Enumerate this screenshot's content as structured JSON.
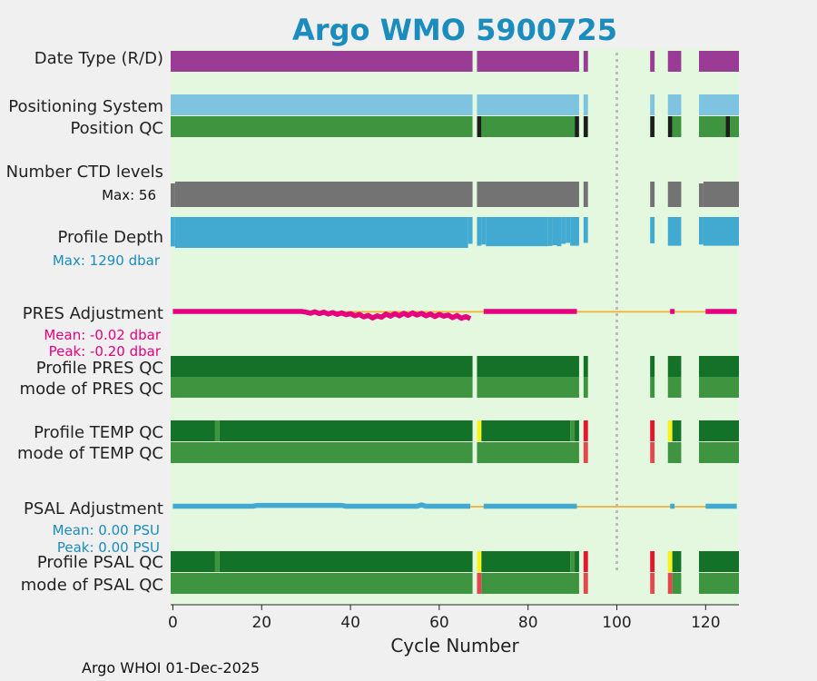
{
  "chart_data": {
    "type": "bar",
    "title": "Argo WMO 5900725",
    "xlabel": "Cycle Number",
    "xlim": [
      -0.5,
      127.5
    ],
    "xticks": [
      0,
      20,
      40,
      60,
      80,
      100,
      120
    ],
    "grid": false,
    "footer": "Argo WHOI 01-Dec-2025",
    "missing_cycle_marker": 100,
    "row_labels": {
      "date_type": "Date Type (R/D)",
      "positioning_system": "Positioning System",
      "position_qc": "Position QC",
      "ctd_levels": "Number CTD levels",
      "ctd_max": "Max: 56",
      "profile_depth": "Profile Depth",
      "depth_max": "Max: 1290 dbar",
      "pres_adjustment": "PRES Adjustment",
      "pres_mean": "Mean: -0.02 dbar",
      "pres_peak": "Peak: -0.20 dbar",
      "profile_pres_qc": "Profile PRES QC",
      "mode_pres_qc": "mode of PRES QC",
      "profile_temp_qc": "Profile TEMP QC",
      "mode_temp_qc": "mode of TEMP QC",
      "psal_adjustment": "PSAL Adjustment",
      "psal_mean": "Mean: 0.00 PSU",
      "psal_peak": "Peak: 0.00 PSU",
      "profile_psal_qc": "Profile PSAL QC",
      "mode_psal_qc": "mode of PSAL QC"
    },
    "colors": {
      "background": "#e4f8e0",
      "title": "#1a8cbd",
      "date_type": "#9a3b96",
      "positioning": "#7ec4e0",
      "qc_good": "#3f9440",
      "qc_probably_good": "#137227",
      "qc_probably_bad": "#f7f21a",
      "qc_bad": "#e5172b",
      "qc_bad_light": "#e5474e",
      "qc_missing": "#1d1d1d",
      "ctd": "#737373",
      "depth": "#42aad0",
      "pres_adj": "#e6007e",
      "psal_adj": "#42aad0",
      "trend_line": "#f0b030",
      "grey_marker": "#bdbdbd",
      "label_magenta": "#e6007e",
      "label_blue": "#1a8cbd"
    },
    "cycle_segments": [
      [
        0,
        67
      ],
      [
        69,
        91
      ],
      [
        93,
        93
      ],
      [
        108,
        108
      ],
      [
        112,
        114
      ],
      [
        119,
        127
      ]
    ],
    "date_type_segments": [
      [
        0,
        67
      ],
      [
        69,
        91
      ],
      [
        93,
        93
      ],
      [
        108,
        108
      ],
      [
        112,
        114
      ],
      [
        119,
        127
      ]
    ],
    "position_qc_missing_cycles": [
      69,
      91,
      93,
      108,
      112,
      125
    ],
    "number_ctd_levels": {
      "max": 56,
      "values": [
        [
          0,
          0,
          52
        ],
        [
          1,
          67,
          56
        ],
        [
          69,
          91,
          56
        ],
        [
          93,
          93,
          56
        ],
        [
          108,
          108,
          56
        ],
        [
          112,
          114,
          56
        ],
        [
          119,
          119,
          52
        ],
        [
          120,
          127,
          56
        ]
      ]
    },
    "profile_depth_dbar": {
      "max": 1290,
      "values": [
        [
          0,
          0,
          1230
        ],
        [
          1,
          66,
          1290
        ],
        [
          67,
          67,
          1120
        ],
        [
          69,
          69,
          1200
        ],
        [
          70,
          70,
          1150
        ],
        [
          71,
          84,
          1220
        ],
        [
          85,
          85,
          1210
        ],
        [
          86,
          86,
          1180
        ],
        [
          87,
          87,
          1220
        ],
        [
          88,
          88,
          1120
        ],
        [
          89,
          89,
          1080
        ],
        [
          90,
          91,
          1200
        ],
        [
          93,
          93,
          1080
        ],
        [
          108,
          108,
          1100
        ],
        [
          112,
          114,
          1200
        ],
        [
          119,
          119,
          1150
        ],
        [
          120,
          127,
          1200
        ]
      ]
    },
    "pres_adjustment_dbar": {
      "mean": -0.02,
      "peak": -0.2,
      "series": [
        [
          0,
          0.0
        ],
        [
          25,
          0.0
        ],
        [
          29,
          0.0
        ],
        [
          30,
          -0.02
        ],
        [
          31,
          -0.05
        ],
        [
          32,
          -0.01
        ],
        [
          33,
          -0.06
        ],
        [
          34,
          -0.02
        ],
        [
          35,
          -0.07
        ],
        [
          36,
          -0.03
        ],
        [
          37,
          -0.08
        ],
        [
          38,
          -0.04
        ],
        [
          39,
          -0.09
        ],
        [
          40,
          -0.06
        ],
        [
          41,
          -0.12
        ],
        [
          42,
          -0.08
        ],
        [
          43,
          -0.15
        ],
        [
          44,
          -0.11
        ],
        [
          45,
          -0.18
        ],
        [
          46,
          -0.12
        ],
        [
          47,
          -0.16
        ],
        [
          48,
          -0.07
        ],
        [
          49,
          -0.13
        ],
        [
          50,
          -0.06
        ],
        [
          51,
          -0.12
        ],
        [
          52,
          -0.05
        ],
        [
          53,
          -0.11
        ],
        [
          54,
          -0.04
        ],
        [
          55,
          -0.1
        ],
        [
          56,
          -0.05
        ],
        [
          57,
          -0.12
        ],
        [
          58,
          -0.07
        ],
        [
          59,
          -0.14
        ],
        [
          60,
          -0.08
        ],
        [
          61,
          -0.13
        ],
        [
          62,
          -0.1
        ],
        [
          63,
          -0.17
        ],
        [
          64,
          -0.11
        ],
        [
          65,
          -0.19
        ],
        [
          66,
          -0.14
        ],
        [
          67,
          -0.2
        ],
        [
          null,
          null
        ],
        [
          70,
          0.0
        ],
        [
          91,
          0.0
        ],
        [
          null,
          null
        ],
        [
          112,
          0.0
        ],
        [
          113,
          0.0
        ],
        [
          null,
          null
        ],
        [
          120,
          0.0
        ],
        [
          127,
          0.0
        ]
      ],
      "trend_line": [
        [
          0,
          -0.01
        ],
        [
          127,
          -0.01
        ]
      ]
    },
    "profile_pres_qc_segments": [
      [
        0,
        67
      ],
      [
        69,
        91
      ],
      [
        93,
        93
      ],
      [
        108,
        108
      ],
      [
        112,
        114
      ],
      [
        119,
        127
      ]
    ],
    "mode_pres_qc_segments": [
      [
        0,
        67
      ],
      [
        69,
        91
      ],
      [
        93,
        93
      ],
      [
        108,
        108
      ],
      [
        112,
        114
      ],
      [
        119,
        127
      ]
    ],
    "profile_temp_qc": [
      [
        0,
        9,
        "A"
      ],
      [
        10,
        10,
        "B"
      ],
      [
        11,
        67,
        "A"
      ],
      [
        69,
        69,
        "C"
      ],
      [
        70,
        89,
        "A"
      ],
      [
        90,
        90,
        "B"
      ],
      [
        91,
        91,
        "A"
      ],
      [
        93,
        93,
        "F"
      ],
      [
        108,
        108,
        "F"
      ],
      [
        112,
        112,
        "C"
      ],
      [
        113,
        114,
        "A"
      ],
      [
        119,
        127,
        "A"
      ]
    ],
    "mode_temp_qc": [
      [
        0,
        67,
        "1"
      ],
      [
        69,
        91,
        "1"
      ],
      [
        93,
        93,
        "4"
      ],
      [
        108,
        108,
        "4"
      ],
      [
        112,
        114,
        "1"
      ],
      [
        119,
        127,
        "1"
      ]
    ],
    "psal_adjustment_psu": {
      "mean": 0.0,
      "peak": 0.0,
      "series": [
        [
          0,
          0.0
        ],
        [
          18,
          0.0
        ],
        [
          19,
          0.0003
        ],
        [
          38,
          0.0003
        ],
        [
          39,
          0.0
        ],
        [
          55,
          0.0
        ],
        [
          56,
          0.0005
        ],
        [
          57,
          0.0
        ],
        [
          67,
          0.0
        ],
        [
          null,
          null
        ],
        [
          70,
          0.0
        ],
        [
          91,
          0.0
        ],
        [
          null,
          null
        ],
        [
          112,
          0.0
        ],
        [
          113,
          0.0
        ],
        [
          null,
          null
        ],
        [
          120,
          0.0
        ],
        [
          127,
          0.0
        ]
      ],
      "trend_line": [
        [
          0,
          0.0
        ],
        [
          127,
          0.0
        ]
      ]
    },
    "profile_psal_qc": [
      [
        0,
        9,
        "A"
      ],
      [
        10,
        10,
        "B"
      ],
      [
        11,
        67,
        "A"
      ],
      [
        69,
        69,
        "C"
      ],
      [
        70,
        89,
        "A"
      ],
      [
        90,
        90,
        "B"
      ],
      [
        91,
        91,
        "A"
      ],
      [
        93,
        93,
        "F"
      ],
      [
        108,
        108,
        "F"
      ],
      [
        112,
        112,
        "C"
      ],
      [
        113,
        114,
        "A"
      ],
      [
        119,
        127,
        "A"
      ]
    ],
    "mode_psal_qc": [
      [
        0,
        67,
        "1"
      ],
      [
        69,
        69,
        "4"
      ],
      [
        70,
        91,
        "1"
      ],
      [
        93,
        93,
        "4"
      ],
      [
        108,
        108,
        "4"
      ],
      [
        112,
        112,
        "4"
      ],
      [
        113,
        114,
        "1"
      ],
      [
        119,
        127,
        "1"
      ]
    ]
  }
}
